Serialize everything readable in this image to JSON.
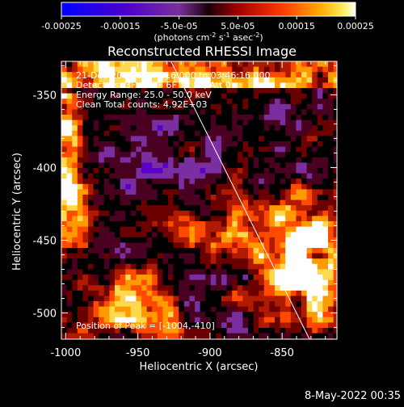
{
  "colorbar": {
    "tick_labels": [
      "-0.00025",
      "-0.00015",
      "-5.0e-05",
      "5.0e-05",
      "0.00015",
      "0.00025"
    ],
    "units_prefix": "(photons cm",
    "units_exp1": "-2",
    "units_mid": " s",
    "units_exp2": "-1",
    "units_mid2": " asec",
    "units_exp3": "-2",
    "units_suffix": ")",
    "range": [
      -0.00025,
      0.00025
    ]
  },
  "plot": {
    "title": "Reconstructed RHESSI Image",
    "annotations": [
      "21-Dec-2003 03:40:16.000 to 03:46:16.000",
      "Detectors: 3F 4F 5F 6F 7F 8F, Att 0",
      "Energy Range: 25.0 - 50.0 keV",
      "Clean     Total counts: 4.92E+03"
    ],
    "peak_label": "Position of Peak = [-1004,-410]"
  },
  "chart_data": {
    "type": "heatmap",
    "title": "Reconstructed RHESSI Image",
    "xlabel": "Heliocentric X (arcsec)",
    "ylabel": "Heliocentric Y (arcsec)",
    "xlim": [
      -1003,
      -812
    ],
    "ylim": [
      -518,
      -327
    ],
    "x_ticks": [
      -1000,
      -950,
      -900,
      -850
    ],
    "y_ticks": [
      -350,
      -400,
      -450,
      -500
    ],
    "x_tick_labels": [
      "-1000",
      "-950",
      "-900",
      "-850"
    ],
    "y_tick_labels": [
      "-350",
      "-400",
      "-450",
      "-500"
    ],
    "limb_line": {
      "x1": -927,
      "y1": -327,
      "x2": -831,
      "y2": -518
    },
    "colorscale": [
      "#0000ff",
      "#5a00c8",
      "#7a2fa0",
      "#4a0020",
      "#000000",
      "#6b0000",
      "#b01a00",
      "#ff4a00",
      "#ff9a00",
      "#ffd94d",
      "#ffffff"
    ]
  },
  "footer": {
    "date": "8-May-2022 00:35"
  }
}
